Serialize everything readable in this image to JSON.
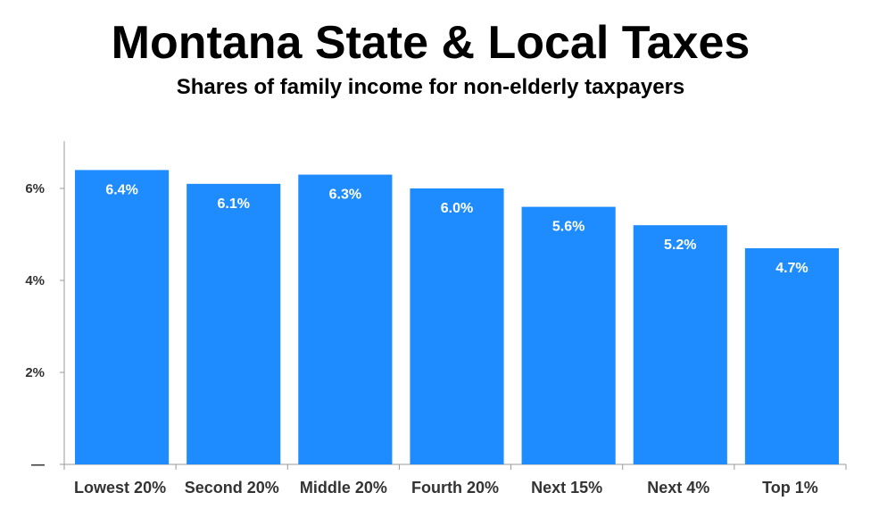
{
  "chart_data": {
    "type": "bar",
    "title": "Montana State & Local Taxes",
    "subtitle": "Shares of family income for non-elderly taxpayers",
    "categories": [
      "Lowest 20%",
      "Second 20%",
      "Middle 20%",
      "Fourth 20%",
      "Next 15%",
      "Next 4%",
      "Top 1%"
    ],
    "values": [
      6.4,
      6.1,
      6.3,
      6.0,
      5.6,
      5.2,
      4.7
    ],
    "data_labels": [
      "6.4%",
      "6.1%",
      "6.3%",
      "6.0%",
      "5.6%",
      "5.2%",
      "4.7%"
    ],
    "yticks": [
      0,
      2,
      4,
      6
    ],
    "ytick_labels": [
      "—",
      "2%",
      "4%",
      "6%"
    ],
    "ylim": [
      0,
      7.5
    ],
    "xlabel": "",
    "ylabel": "",
    "grid": false,
    "bar_color": "#1e8cff"
  }
}
